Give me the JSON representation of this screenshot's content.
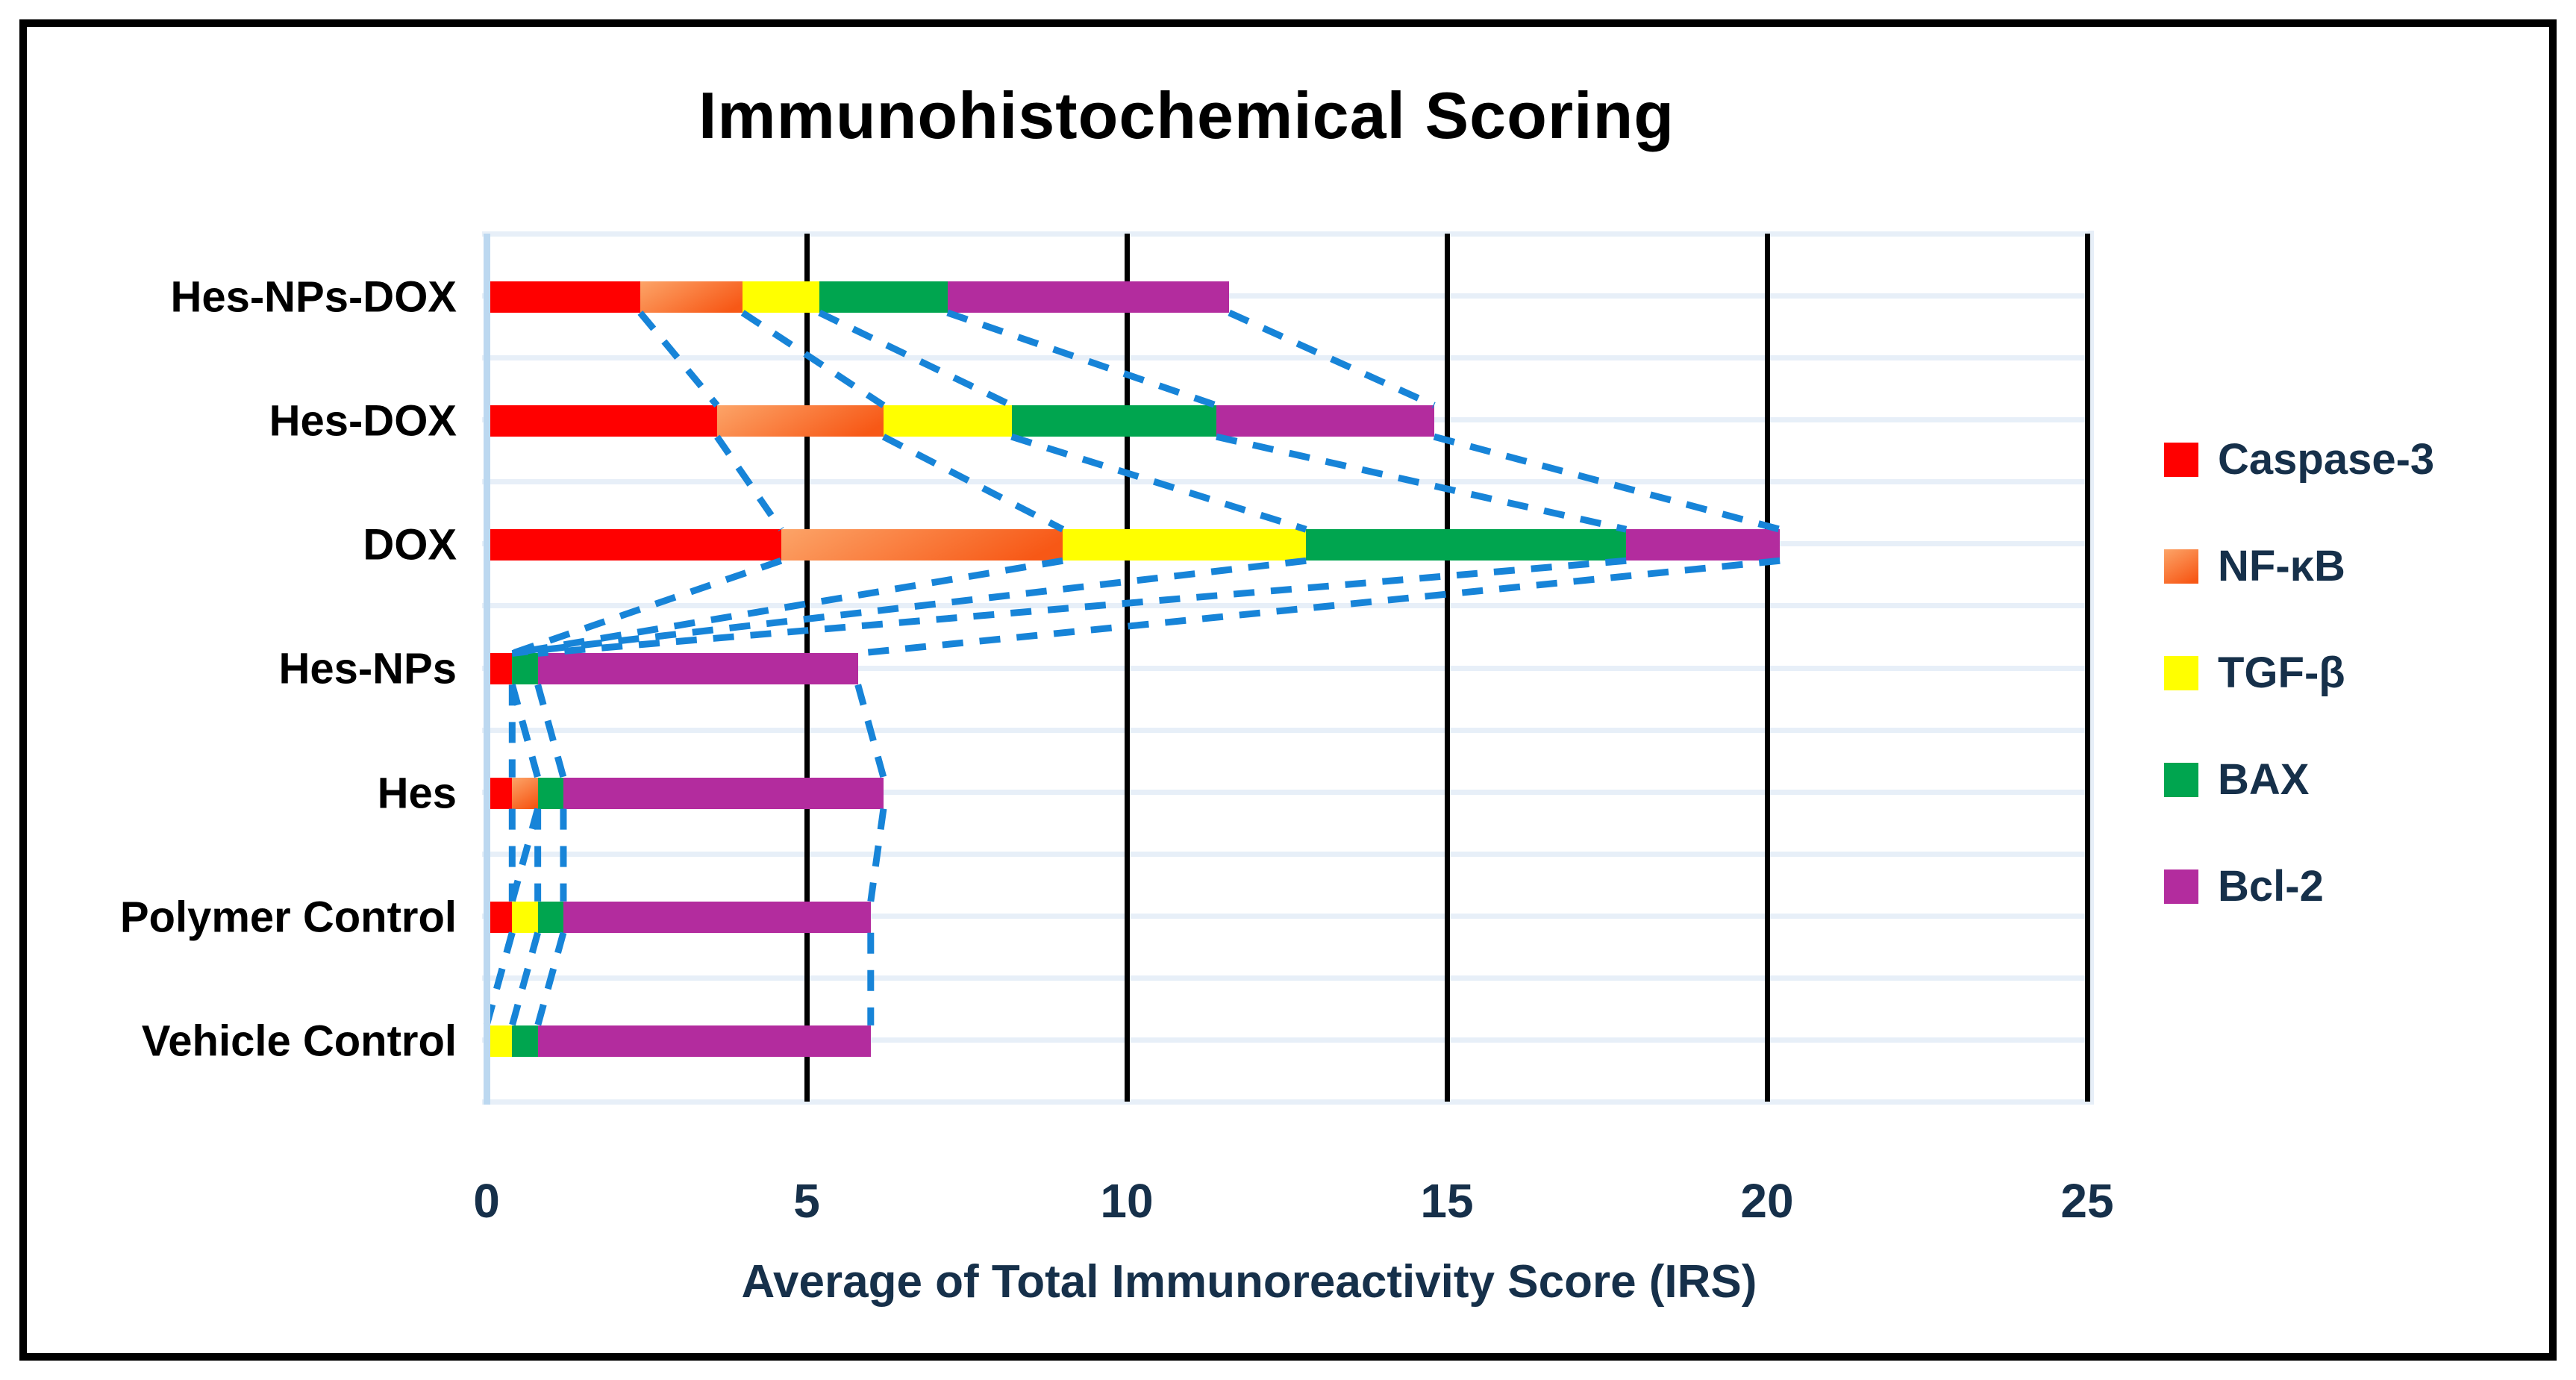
{
  "title_block": {
    "note": "chart title shown at top of framed figure"
  },
  "chart_data": {
    "type": "bar",
    "orientation": "horizontal-stacked",
    "title": "Immunohistochemical Scoring",
    "xlabel": "Average of Total Immunoreactivity Score (IRS)",
    "ylabel": "",
    "xlim": [
      0,
      25
    ],
    "xticks": [
      0,
      5,
      10,
      15,
      20,
      25
    ],
    "grid": "vertical black major gridlines at 5,10,15,20,25; pale blue horizontal lines at category centers and boundaries",
    "legend_position": "right",
    "connector_style": "dashed blue series lines linking segment boundaries of adjacent bars",
    "categories": [
      "Hes-NPs-DOX",
      "Hes-DOX",
      "DOX",
      "Hes-NPs",
      "Hes",
      "Polymer Control",
      "Vehicle Control"
    ],
    "series": [
      {
        "name": "Caspase-3",
        "color": "#FF0000",
        "values": [
          2.4,
          3.6,
          4.6,
          0.4,
          0.4,
          0.4,
          0
        ]
      },
      {
        "name": "NF-κB",
        "color": "#F97316",
        "gradient": [
          "#FCA468",
          "#F75816"
        ],
        "values": [
          1.6,
          2.6,
          4.4,
          0,
          0.4,
          0,
          0
        ]
      },
      {
        "name": "TGF-β",
        "color": "#FFFF00",
        "values": [
          1.2,
          2.0,
          3.8,
          0,
          0,
          0.4,
          0.4
        ]
      },
      {
        "name": "BAX",
        "color": "#00A54F",
        "values": [
          2.0,
          3.2,
          5.0,
          0.4,
          0.4,
          0.4,
          0.4
        ]
      },
      {
        "name": "Bcl-2",
        "color": "#B32C9E",
        "values": [
          4.4,
          3.4,
          2.4,
          5.0,
          5.0,
          4.8,
          5.2
        ]
      }
    ],
    "totals": [
      11.6,
      14.8,
      20.2,
      5.8,
      6.2,
      6.0,
      6.0
    ]
  },
  "palette": {
    "text_navy": "#16304A",
    "category_label_black": "#000000",
    "grid_black": "#000000",
    "band_blue": "#E7EFF8",
    "axis_line_blue": "#BCD8F0",
    "dash_line_blue": "#1784D8",
    "frame_black": "#000000",
    "background": "#FFFFFF"
  }
}
